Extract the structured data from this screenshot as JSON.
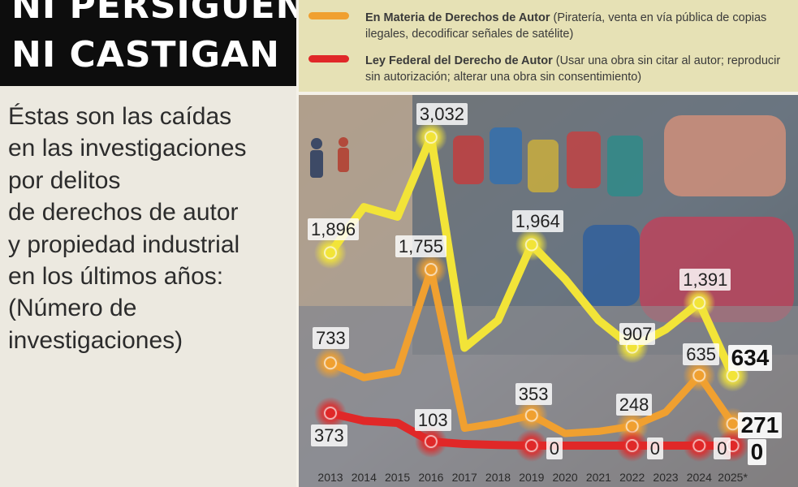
{
  "headline": {
    "line1": "NI PERSIGUEN",
    "line2": "NI CASTIGAN"
  },
  "intro": {
    "lines": [
      "Éstas son las caídas",
      "en las investigaciones",
      "por delitos",
      "de derechos de autor",
      "y propiedad industrial",
      "en los últimos años:",
      "(Número de",
      "investigaciones)"
    ]
  },
  "legend": [
    {
      "color": "#7fa63a",
      "name": "",
      "description": "",
      "partially_hidden": true
    },
    {
      "color": "#f0a030",
      "name": "En Materia de Derechos de Autor",
      "description": "(Piratería, venta en vía pública de copias ilegales, decodificar señales de satélite)"
    },
    {
      "color": "#e02828",
      "name": "Ley Federal del Derecho de Autor",
      "description": "(Usar una obra sin citar al autor; reproducir sin autorización; alterar una obra sin consentimiento)"
    }
  ],
  "chart_data": {
    "type": "line",
    "x": [
      "2013",
      "2014",
      "2015",
      "2016",
      "2017",
      "2018",
      "2019",
      "2020",
      "2021",
      "2022",
      "2023",
      "2024",
      "2025*"
    ],
    "series": [
      {
        "color": "#f2e438",
        "values": [
          1896,
          2300,
          2200,
          3032,
          900,
          1200,
          1964,
          1650,
          1200,
          907,
          1100,
          1391,
          634
        ],
        "labels": {
          "0": "1,896",
          "3": "3,032",
          "6": "1,964",
          "9": "907",
          "11": "1,391",
          "12": "634"
        }
      },
      {
        "name": "En Materia de Derechos de Autor",
        "color": "#f0a030",
        "values": [
          733,
          620,
          660,
          1755,
          230,
          280,
          353,
          180,
          200,
          248,
          380,
          635,
          271
        ],
        "labels": {
          "0": "733",
          "3": "1,755",
          "6": "353",
          "9": "248",
          "11": "635",
          "12": "271"
        }
      },
      {
        "name": "Ley Federal del Derecho de Autor",
        "color": "#e02828",
        "values": [
          373,
          300,
          280,
          103,
          40,
          15,
          0,
          0,
          0,
          0,
          0,
          0,
          0
        ],
        "labels": {
          "0": "373",
          "3": "103",
          "6": "0",
          "9": "0",
          "11": "0",
          "12": "0"
        }
      }
    ]
  }
}
